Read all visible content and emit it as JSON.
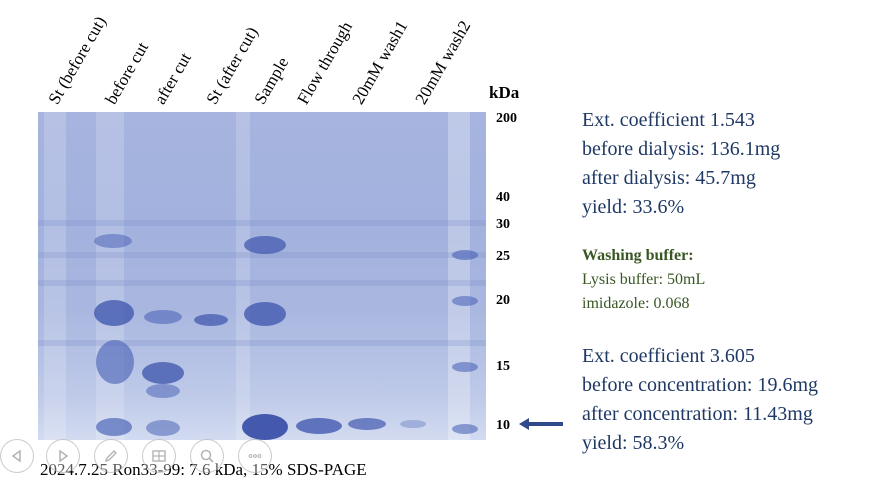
{
  "lanes": [
    "St (before cut)",
    "before cut",
    "after cut",
    "St (after cut)",
    "Sample",
    "Flow through",
    "20mM wash1",
    "20mM wash2"
  ],
  "kda": {
    "title": "kDa",
    "markers": [
      "200",
      "40",
      "30",
      "25",
      "20",
      "15",
      "10"
    ]
  },
  "caption": "2024.7.25  Ron33-99: 7.6 kDa, 15% SDS-PAGE",
  "dialysis": {
    "ext_coefficient": "Ext. coefficient  1.543",
    "before": "before dialysis: 136.1mg",
    "after": "after dialysis: 45.7mg",
    "yield": "yield: 33.6%"
  },
  "washing": {
    "title": "Washing buffer:",
    "lysis": "Lysis buffer: 50mL",
    "imidazole": "imidazole:  0.068"
  },
  "concentration": {
    "ext_coefficient": "Ext. coefficient  3.605",
    "before": "before concentration: 19.6mg",
    "after": "after concentration: 11.43mg",
    "yield": "yield: 58.3%"
  },
  "colors": {
    "info_text": "#1f3864",
    "washing_text": "#385723",
    "gel_background": "#a6b4df",
    "band": "#4f66b8",
    "arrow": "#2f4a8a"
  },
  "toolbar_icons": [
    "back-icon",
    "forward-icon",
    "pen-icon",
    "slides-icon",
    "zoom-icon",
    "more-icon"
  ]
}
